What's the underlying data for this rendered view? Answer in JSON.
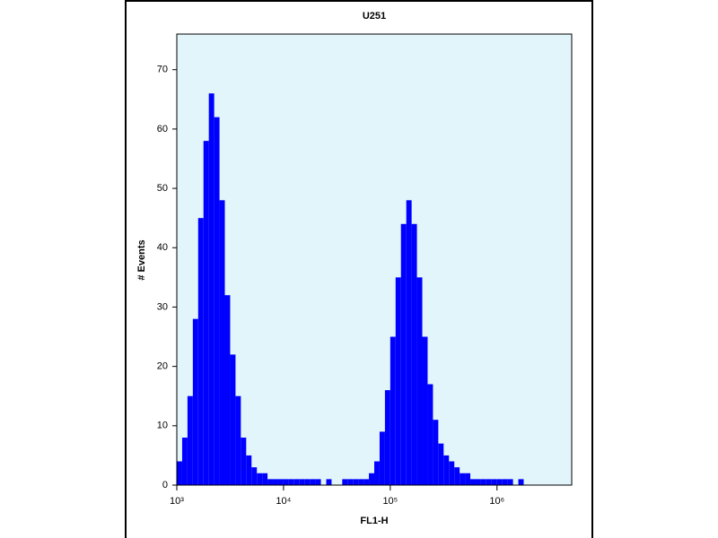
{
  "chart_data": {
    "type": "histogram",
    "title": "U251",
    "xlabel": "FL1-H",
    "ylabel": "# Events",
    "xscale": "log",
    "color": "#0000ff",
    "background": "#e2f5fb",
    "xlim": [
      1000,
      5012000
    ],
    "ylim": [
      0,
      76
    ],
    "xticks": [
      {
        "value": 1000,
        "label": "10³"
      },
      {
        "value": 10000,
        "label": "10⁴"
      },
      {
        "value": 100000,
        "label": "10⁵"
      },
      {
        "value": 1000000,
        "label": "10⁶"
      }
    ],
    "yticks": [
      0,
      10,
      20,
      30,
      40,
      50,
      60,
      70
    ],
    "bins": [
      1000,
      1122,
      1259,
      1413,
      1585,
      1778,
      1995,
      2239,
      2512,
      2818,
      3162,
      3548,
      3981,
      4467,
      5012,
      5623,
      6310,
      7079,
      7943,
      8913,
      10000,
      11220,
      12590,
      14130,
      15850,
      17780,
      19950,
      22390,
      25120,
      28180,
      31620,
      35480,
      39810,
      44670,
      50120,
      56230,
      63100,
      70790,
      79430,
      89130,
      100000,
      112200,
      125900,
      141300,
      158500,
      177800,
      199500,
      223900,
      251200,
      281800,
      316200,
      354800,
      398100,
      446700,
      501200,
      562300,
      631000,
      707900,
      794300,
      891300,
      1000000,
      1122000,
      1259000,
      1413000,
      1585000,
      1778000,
      1995000,
      2239000,
      2512000,
      2818000,
      3162000,
      3548000,
      3981000,
      4467000,
      5012000
    ],
    "values": [
      4,
      8,
      15,
      28,
      45,
      58,
      66,
      62,
      48,
      32,
      22,
      15,
      8,
      5,
      3,
      2,
      2,
      1,
      1,
      1,
      1,
      1,
      1,
      1,
      1,
      1,
      1,
      0,
      1,
      0,
      0,
      1,
      1,
      1,
      1,
      1,
      2,
      4,
      9,
      16,
      25,
      35,
      44,
      48,
      44,
      35,
      25,
      17,
      11,
      7,
      5,
      4,
      3,
      2,
      2,
      1,
      1,
      1,
      1,
      1,
      1,
      1,
      1,
      0,
      1,
      0,
      0,
      0,
      0,
      0,
      0,
      0,
      0,
      0
    ]
  }
}
